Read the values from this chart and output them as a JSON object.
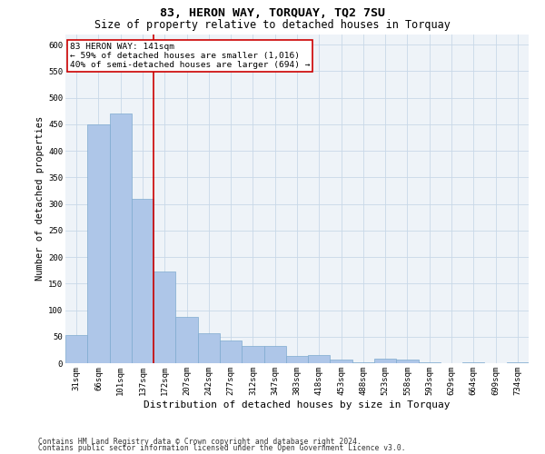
{
  "title": "83, HERON WAY, TORQUAY, TQ2 7SU",
  "subtitle": "Size of property relative to detached houses in Torquay",
  "xlabel": "Distribution of detached houses by size in Torquay",
  "ylabel": "Number of detached properties",
  "footer_line1": "Contains HM Land Registry data © Crown copyright and database right 2024.",
  "footer_line2": "Contains public sector information licensed under the Open Government Licence v3.0.",
  "categories": [
    "31sqm",
    "66sqm",
    "101sqm",
    "137sqm",
    "172sqm",
    "207sqm",
    "242sqm",
    "277sqm",
    "312sqm",
    "347sqm",
    "383sqm",
    "418sqm",
    "453sqm",
    "488sqm",
    "523sqm",
    "558sqm",
    "593sqm",
    "629sqm",
    "664sqm",
    "699sqm",
    "734sqm"
  ],
  "values": [
    53,
    450,
    470,
    310,
    173,
    88,
    57,
    42,
    32,
    32,
    14,
    15,
    6,
    2,
    8,
    7,
    1,
    0,
    1,
    0,
    2
  ],
  "bar_color": "#aec6e8",
  "bar_edge_color": "#7eaacf",
  "grid_color": "#c8d8e8",
  "bg_color": "#eef3f8",
  "property_line_color": "#cc0000",
  "annotation_text_line1": "83 HERON WAY: 141sqm",
  "annotation_text_line2": "← 59% of detached houses are smaller (1,016)",
  "annotation_text_line3": "40% of semi-detached houses are larger (694) →",
  "annotation_box_color": "#cc0000",
  "ylim": [
    0,
    620
  ],
  "yticks": [
    0,
    50,
    100,
    150,
    200,
    250,
    300,
    350,
    400,
    450,
    500,
    550,
    600
  ],
  "title_fontsize": 9.5,
  "subtitle_fontsize": 8.5,
  "axis_label_fontsize": 7.5,
  "tick_fontsize": 6.5,
  "annotation_fontsize": 6.8,
  "footer_fontsize": 5.8
}
